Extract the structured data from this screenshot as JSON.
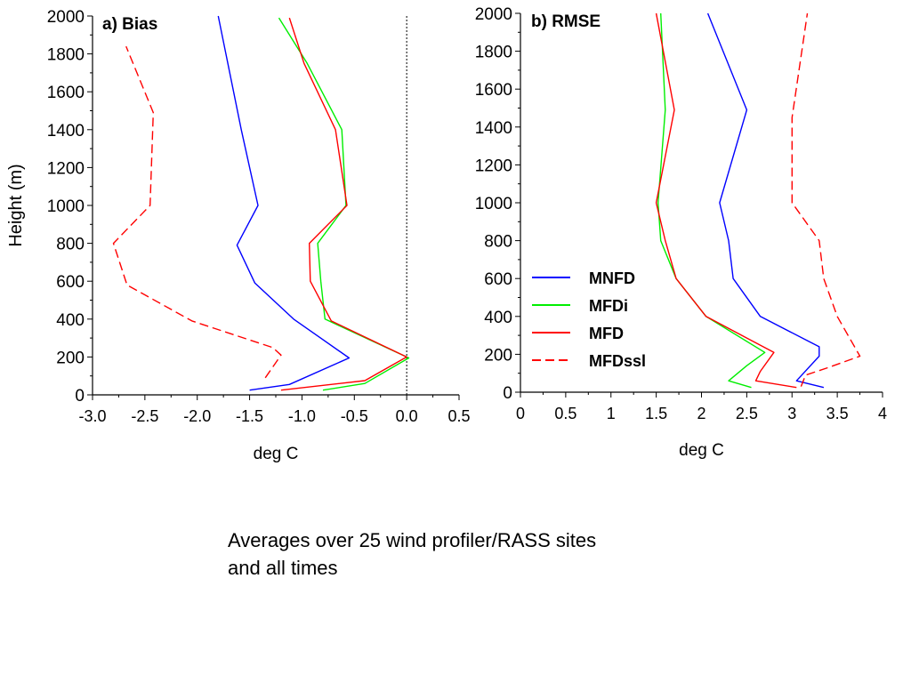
{
  "caption": {
    "line1": "Averages over 25 wind profiler/RASS sites",
    "line2": "and all times"
  },
  "colors": {
    "MNFD": "#0000ff",
    "MFDi": "#00ee00",
    "MFD": "#ff0000",
    "MFDssl": "#ff0000"
  },
  "chart_data": [
    {
      "type": "line",
      "title": "a) Bias",
      "xlabel": "deg C",
      "ylabel": "Height (m)",
      "xlim": [
        -3.0,
        0.5
      ],
      "ylim": [
        0,
        2000
      ],
      "xticks": [
        -3.0,
        -2.5,
        -2.0,
        -1.5,
        -1.0,
        -0.5,
        0.0,
        0.5
      ],
      "xtick_labels": [
        "-3.0",
        "-2.5",
        "-2.0",
        "-1.5",
        "-1.0",
        "-0.5",
        "0.0",
        "0.5"
      ],
      "yticks": [
        0,
        200,
        400,
        600,
        800,
        1000,
        1200,
        1400,
        1600,
        1800,
        2000
      ],
      "ytick_labels": [
        "0",
        "200",
        "400",
        "600",
        "800",
        "1000",
        "1200",
        "1400",
        "1600",
        "1800",
        "2000"
      ],
      "reference_line": {
        "x": 0.0,
        "style": "dotted"
      },
      "grid": false,
      "series": [
        {
          "name": "MNFD",
          "dashed": false,
          "points": [
            [
              -1.5,
              25
            ],
            [
              -1.12,
              55
            ],
            [
              -0.55,
              195
            ],
            [
              -1.08,
              400
            ],
            [
              -1.45,
              590
            ],
            [
              -1.62,
              790
            ],
            [
              -1.42,
              1000
            ],
            [
              -1.58,
              1400
            ],
            [
              -1.8,
              2000
            ]
          ]
        },
        {
          "name": "MFDi",
          "dashed": false,
          "points": [
            [
              -0.8,
              25
            ],
            [
              -0.4,
              60
            ],
            [
              0.02,
              195
            ],
            [
              -0.78,
              400
            ],
            [
              -0.82,
              600
            ],
            [
              -0.85,
              800
            ],
            [
              -0.58,
              1000
            ],
            [
              -0.62,
              1400
            ],
            [
              -0.95,
              1750
            ],
            [
              -1.22,
              1990
            ]
          ]
        },
        {
          "name": "MFD",
          "dashed": false,
          "points": [
            [
              -1.2,
              25
            ],
            [
              -0.4,
              75
            ],
            [
              0.0,
              200
            ],
            [
              -0.72,
              390
            ],
            [
              -0.92,
              600
            ],
            [
              -0.93,
              800
            ],
            [
              -0.57,
              1000
            ],
            [
              -0.68,
              1400
            ],
            [
              -0.98,
              1750
            ],
            [
              -1.12,
              1990
            ]
          ]
        },
        {
          "name": "MFDssl",
          "dashed": true,
          "points": [
            [
              -1.35,
              90
            ],
            [
              -1.2,
              210
            ],
            [
              -1.28,
              250
            ],
            [
              -2.05,
              390
            ],
            [
              -2.67,
              580
            ],
            [
              -2.8,
              800
            ],
            [
              -2.45,
              1000
            ],
            [
              -2.42,
              1490
            ],
            [
              -2.68,
              1840
            ]
          ]
        }
      ]
    },
    {
      "type": "line",
      "title": "b) RMSE",
      "xlabel": "deg C",
      "ylabel": "",
      "xlim": [
        0,
        4
      ],
      "ylim": [
        0,
        2000
      ],
      "xticks": [
        0,
        0.5,
        1,
        1.5,
        2,
        2.5,
        3,
        3.5,
        4
      ],
      "xtick_labels": [
        "0",
        "0.5",
        "1",
        "1.5",
        "2",
        "2.5",
        "3",
        "3.5",
        "4"
      ],
      "yticks": [
        0,
        200,
        400,
        600,
        800,
        1000,
        1200,
        1400,
        1600,
        1800,
        2000
      ],
      "ytick_labels": [
        "0",
        "200",
        "400",
        "600",
        "800",
        "1000",
        "1200",
        "1400",
        "1600",
        "1800",
        "2000"
      ],
      "grid": false,
      "legend": {
        "position": "left-middle",
        "entries": [
          "MNFD",
          "MFDi",
          "MFD",
          "MFDssl"
        ]
      },
      "series": [
        {
          "name": "MNFD",
          "dashed": false,
          "points": [
            [
              3.35,
              25
            ],
            [
              3.05,
              60
            ],
            [
              3.3,
              190
            ],
            [
              3.3,
              240
            ],
            [
              2.65,
              400
            ],
            [
              2.35,
              600
            ],
            [
              2.3,
              800
            ],
            [
              2.2,
              1000
            ],
            [
              2.5,
              1490
            ],
            [
              2.07,
              2000
            ]
          ]
        },
        {
          "name": "MFDi",
          "dashed": false,
          "points": [
            [
              2.55,
              25
            ],
            [
              2.3,
              60
            ],
            [
              2.5,
              140
            ],
            [
              2.7,
              210
            ],
            [
              2.05,
              400
            ],
            [
              1.72,
              600
            ],
            [
              1.55,
              800
            ],
            [
              1.52,
              1000
            ],
            [
              1.6,
              1490
            ],
            [
              1.55,
              2000
            ]
          ]
        },
        {
          "name": "MFD",
          "dashed": false,
          "points": [
            [
              3.05,
              25
            ],
            [
              2.6,
              60
            ],
            [
              2.65,
              110
            ],
            [
              2.8,
              210
            ],
            [
              2.05,
              400
            ],
            [
              1.72,
              600
            ],
            [
              1.6,
              800
            ],
            [
              1.5,
              1000
            ],
            [
              1.7,
              1490
            ],
            [
              1.5,
              2000
            ]
          ]
        },
        {
          "name": "MFDssl",
          "dashed": true,
          "points": [
            [
              3.1,
              30
            ],
            [
              3.15,
              90
            ],
            [
              3.4,
              130
            ],
            [
              3.75,
              190
            ],
            [
              3.5,
              400
            ],
            [
              3.35,
              600
            ],
            [
              3.3,
              800
            ],
            [
              3.0,
              1000
            ],
            [
              3.0,
              1450
            ],
            [
              3.17,
              2000
            ]
          ]
        }
      ]
    }
  ]
}
